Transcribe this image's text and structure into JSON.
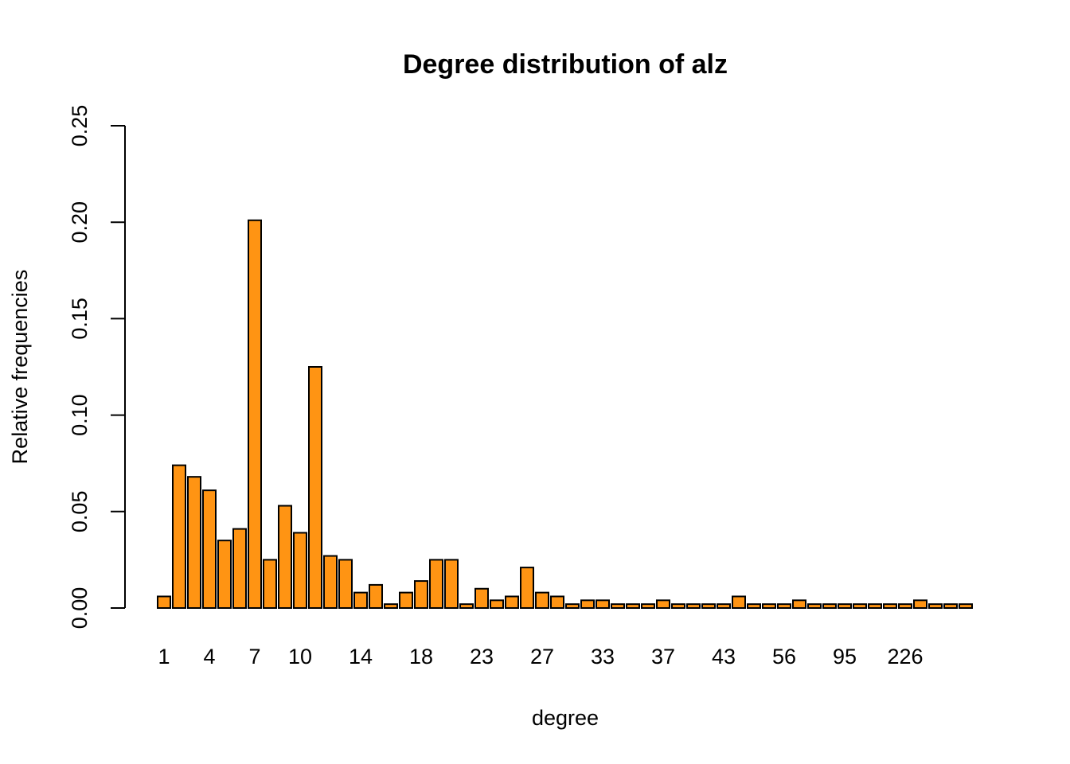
{
  "chart_data": {
    "type": "bar",
    "title": "Degree distribution of alz",
    "xlabel": "degree",
    "ylabel": "Relative frequencies",
    "ylim": [
      0,
      0.25
    ],
    "yticks": [
      "0.00",
      "0.05",
      "0.10",
      "0.15",
      "0.20",
      "0.25"
    ],
    "bar_color": "#ff9413",
    "grid": false,
    "x_tick_labels": [
      {
        "bar_index": 0,
        "label": "1"
      },
      {
        "bar_index": 3,
        "label": "4"
      },
      {
        "bar_index": 6,
        "label": "7"
      },
      {
        "bar_index": 9,
        "label": "10"
      },
      {
        "bar_index": 13,
        "label": "14"
      },
      {
        "bar_index": 17,
        "label": "18"
      },
      {
        "bar_index": 21,
        "label": "23"
      },
      {
        "bar_index": 25,
        "label": "27"
      },
      {
        "bar_index": 29,
        "label": "33"
      },
      {
        "bar_index": 33,
        "label": "37"
      },
      {
        "bar_index": 37,
        "label": "43"
      },
      {
        "bar_index": 41,
        "label": "56"
      },
      {
        "bar_index": 45,
        "label": "95"
      },
      {
        "bar_index": 49,
        "label": "226"
      }
    ],
    "values": [
      0.006,
      0.074,
      0.068,
      0.061,
      0.035,
      0.041,
      0.201,
      0.025,
      0.053,
      0.039,
      0.125,
      0.027,
      0.025,
      0.008,
      0.012,
      0.002,
      0.008,
      0.014,
      0.025,
      0.025,
      0.002,
      0.01,
      0.004,
      0.006,
      0.021,
      0.008,
      0.006,
      0.002,
      0.004,
      0.004,
      0.002,
      0.002,
      0.002,
      0.004,
      0.002,
      0.002,
      0.002,
      0.002,
      0.006,
      0.002,
      0.002,
      0.002,
      0.004,
      0.002,
      0.002,
      0.002,
      0.002,
      0.002,
      0.002,
      0.002,
      0.004,
      0.002,
      0.002,
      0.002
    ]
  }
}
